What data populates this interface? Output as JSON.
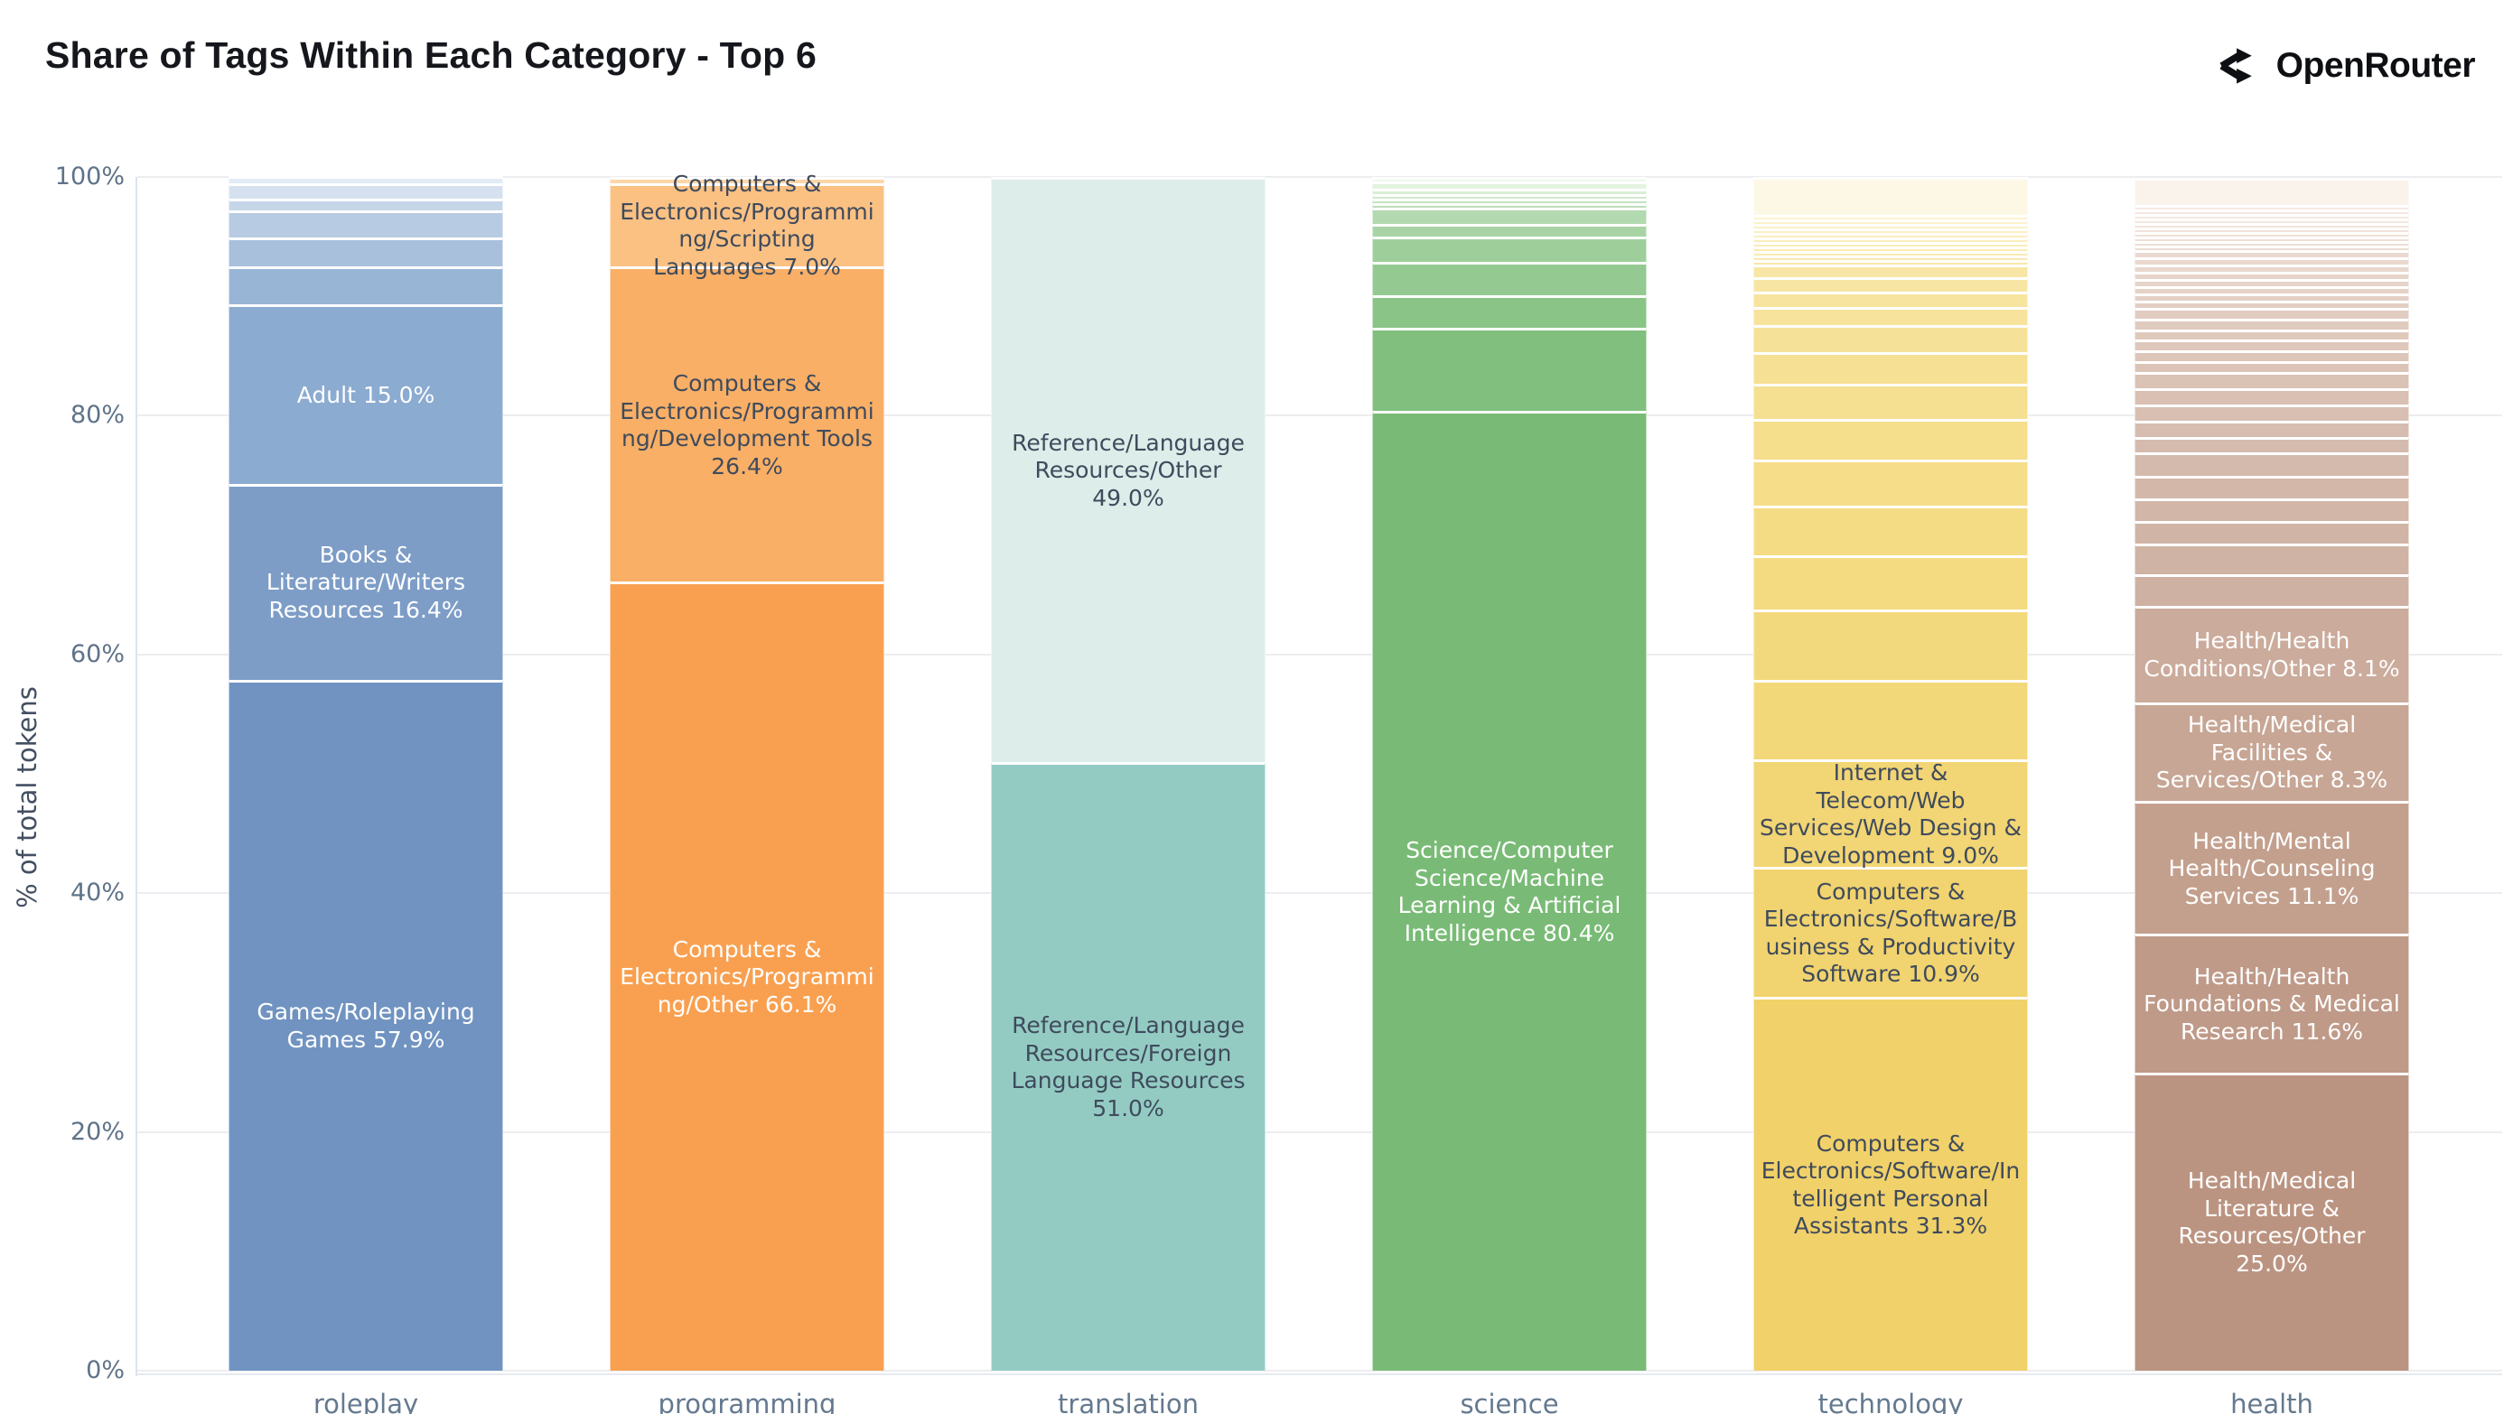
{
  "header": {
    "title": "Share of Tags Within Each Category - Top 6",
    "brand": "OpenRouter"
  },
  "chart_data": {
    "type": "bar",
    "stacked": true,
    "title": "Share of Tags Within Each Category - Top 6",
    "ylabel": "% of total tokens",
    "ylim": [
      0,
      100
    ],
    "grid": "horizontal",
    "legend": "none",
    "ytick_values": [
      0,
      20,
      40,
      60,
      80,
      100
    ],
    "ytick_labels": [
      "0%",
      "20%",
      "40%",
      "60%",
      "80%",
      "100%"
    ],
    "categories": [
      "roleplay",
      "programming",
      "translation",
      "science",
      "technology",
      "health"
    ],
    "bars": [
      {
        "category": "roleplay",
        "ramp": {
          "from": "#99b5d6",
          "to": "#d5e1ef"
        },
        "segments": [
          {
            "label": "Games/Roleplaying Games",
            "pct": 57.9,
            "color": "#7093c1",
            "text": "light"
          },
          {
            "label": "Books & Literature/Writers Resources",
            "pct": 16.4,
            "color": "#7d9dc7",
            "text": "light"
          },
          {
            "label": "Adult",
            "pct": 15.0,
            "color": "#8babd0",
            "text": "light"
          },
          {
            "pct": 3.2
          },
          {
            "pct": 2.4
          },
          {
            "pct": 2.3
          },
          {
            "pct": 1.0
          },
          {
            "pct": 1.3
          },
          {
            "pct": 0.55,
            "color": "#e2ecf6"
          }
        ]
      },
      {
        "category": "programming",
        "ramp": {
          "from": "#fbc183",
          "to": "#fdd6a8"
        },
        "segments": [
          {
            "label": "Computers & Electronics/Programming/Other",
            "pct": 66.1,
            "color": "#f9a050",
            "text": "light"
          },
          {
            "label": "Computers & Electronics/Programming/Development Tools",
            "pct": 26.4,
            "color": "#f9af66",
            "text": "dark"
          },
          {
            "label": "Computers & Electronics/Programming/Scripting Languages",
            "pct": 7.0,
            "color": "#fbc183",
            "text": "dark"
          },
          {
            "pct": 0.5,
            "color": "#fdd6a8"
          }
        ]
      },
      {
        "category": "translation",
        "ramp": {
          "from": "#93cbc3",
          "to": "#dcedea"
        },
        "segments": [
          {
            "label": "Reference/Language Resources/Foreign Language Resources",
            "pct": 51.0,
            "color": "#93cbc3",
            "text": "dark"
          },
          {
            "label": "Reference/Language Resources/Other",
            "pct": 49.0,
            "color": "#dcedea",
            "text": "dark"
          }
        ]
      },
      {
        "category": "science",
        "ramp": {
          "from": "#80bf7d",
          "to": "#e3f3e0"
        },
        "segments": [
          {
            "label": "Science/Computer Science/Machine Learning & Artificial Intelligence",
            "pct": 80.4,
            "color": "#79bb76",
            "text": "light"
          },
          {
            "pct": 7.0
          },
          {
            "pct": 2.7
          },
          {
            "pct": 2.8
          },
          {
            "pct": 2.1
          },
          {
            "pct": 1.1
          },
          {
            "pct": 1.3
          },
          {
            "pct": 0.4
          },
          {
            "pct": 0.4
          },
          {
            "pct": 0.4
          },
          {
            "pct": 0.4
          },
          {
            "pct": 0.6
          },
          {
            "pct": 0.4,
            "color": "#eef8ec"
          }
        ]
      },
      {
        "category": "technology",
        "ramp": {
          "from": "#f3d87a",
          "to": "#fcf3cf"
        },
        "segments": [
          {
            "label": "Computers & Electronics/Software/Intelligent Personal Assistants",
            "pct": 31.3,
            "color": "#f1d169",
            "text": "dark"
          },
          {
            "label": "Computers & Electronics/Software/Business & Productivity Software",
            "pct": 10.9,
            "color": "#f1d36f",
            "text": "dark"
          },
          {
            "label": "Internet & Telecom/Web Services/Web Design & Development",
            "pct": 9.0,
            "color": "#f2d574",
            "text": "dark"
          },
          {
            "pct": 6.7
          },
          {
            "pct": 5.9
          },
          {
            "pct": 4.5
          },
          {
            "pct": 4.2
          },
          {
            "pct": 3.8
          },
          {
            "pct": 3.4
          },
          {
            "pct": 3.0
          },
          {
            "pct": 2.6
          },
          {
            "pct": 2.3
          },
          {
            "pct": 1.5
          },
          {
            "pct": 1.3
          },
          {
            "pct": 1.2
          },
          {
            "pct": 1.05
          },
          {
            "pct": 0.38
          },
          {
            "pct": 0.38
          },
          {
            "pct": 0.38
          },
          {
            "pct": 0.38
          },
          {
            "pct": 0.38
          },
          {
            "pct": 0.38
          },
          {
            "pct": 0.38
          },
          {
            "pct": 0.38
          },
          {
            "pct": 0.38
          },
          {
            "pct": 0.38
          },
          {
            "pct": 0.38
          },
          {
            "pct": 3.2,
            "color": "#fdf8e5"
          }
        ]
      },
      {
        "category": "health",
        "ramp": {
          "from": "#ceb1a2",
          "to": "#f7ebe4"
        },
        "segments": [
          {
            "label": "Health/Medical Literature & Resources/Other",
            "pct": 25.0,
            "color": "#bb9481",
            "text": "light"
          },
          {
            "label": "Health/Health Foundations & Medical Research",
            "pct": 11.6,
            "color": "#bf9a88",
            "text": "light"
          },
          {
            "label": "Health/Mental Health/Counseling Services",
            "pct": 11.1,
            "color": "#c3a08e",
            "text": "light"
          },
          {
            "label": "Health/Medical Facilities & Services/Other",
            "pct": 8.3,
            "color": "#c7a695",
            "text": "light"
          },
          {
            "label": "Health/Health Conditions/Other",
            "pct": 8.1,
            "color": "#cbab9b",
            "text": "light"
          },
          {
            "pct": 2.6
          },
          {
            "pct": 2.6
          },
          {
            "pct": 1.9
          },
          {
            "pct": 1.9
          },
          {
            "pct": 1.9
          },
          {
            "pct": 1.9
          },
          {
            "pct": 1.35
          },
          {
            "pct": 1.35
          },
          {
            "pct": 1.35
          },
          {
            "pct": 1.35
          },
          {
            "pct": 1.35
          },
          {
            "pct": 0.9
          },
          {
            "pct": 0.9
          },
          {
            "pct": 0.9
          },
          {
            "pct": 0.9
          },
          {
            "pct": 0.9
          },
          {
            "pct": 0.9
          },
          {
            "pct": 0.6
          },
          {
            "pct": 0.6
          },
          {
            "pct": 0.6
          },
          {
            "pct": 0.6
          },
          {
            "pct": 0.6
          },
          {
            "pct": 0.6
          },
          {
            "pct": 0.6
          },
          {
            "pct": 0.6
          },
          {
            "pct": 0.38
          },
          {
            "pct": 0.38
          },
          {
            "pct": 0.38
          },
          {
            "pct": 0.38
          },
          {
            "pct": 0.38
          },
          {
            "pct": 0.38
          },
          {
            "pct": 0.38
          },
          {
            "pct": 0.38
          },
          {
            "pct": 0.38
          },
          {
            "pct": 0.38
          },
          {
            "pct": 2.3,
            "color": "#faf3eb"
          }
        ]
      }
    ]
  }
}
